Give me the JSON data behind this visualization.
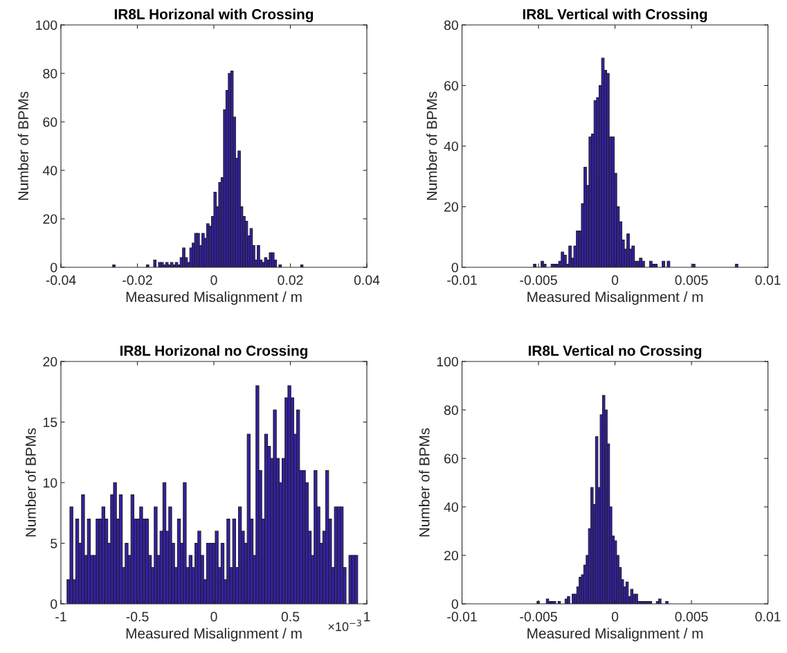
{
  "chart_data": [
    {
      "type": "histogram",
      "title": "IR8L Horizonal with Crossing",
      "xlabel": "Measured Misalignment / m",
      "ylabel": "Number of BPMs",
      "color": "#3521a6",
      "bins": [
        -0.0315,
        -0.03087,
        -0.03024,
        -0.02961,
        -0.02898,
        -0.02835,
        -0.02772,
        -0.02709,
        -0.02646,
        -0.02583,
        -0.0252,
        -0.02457,
        -0.02394,
        -0.02331,
        -0.02268,
        -0.02205,
        -0.02142,
        -0.02079,
        -0.02016,
        -0.01953,
        -0.0189,
        -0.01827,
        -0.01764,
        -0.01701,
        -0.01638,
        -0.01575,
        -0.01512,
        -0.01449,
        -0.01386,
        -0.01323,
        -0.0126,
        -0.01197,
        -0.01134,
        -0.01071,
        -0.01008,
        -0.00945,
        -0.00882,
        -0.00819,
        -0.00756,
        -0.00693,
        -0.0063,
        -0.00567,
        -0.00504,
        -0.00441,
        -0.00378,
        -0.00315,
        -0.00252,
        -0.00189,
        -0.00126,
        -0.00063,
        0,
        0.00063,
        0.00126,
        0.00189,
        0.00252,
        0.00315,
        0.00378,
        0.00441,
        0.00504,
        0.00567,
        0.0063,
        0.00693,
        0.00756,
        0.00819,
        0.00882,
        0.00945,
        0.01008,
        0.01071,
        0.01134,
        0.01197,
        0.0126,
        0.01323,
        0.01386,
        0.01449,
        0.01512,
        0.01575,
        0.01638,
        0.01701,
        0.01764,
        0.01827,
        0.0189,
        0.01953,
        0.02016,
        0.02079,
        0.02142,
        0.02205,
        0.02268,
        0.02331,
        0.02394,
        0.02457,
        0.0252,
        0.02583,
        0.02646,
        0.02709,
        0.02772,
        0.02835,
        0.02898,
        0.02961,
        0.03024,
        0.03087,
        0.0315
      ],
      "values": [
        0,
        0,
        0,
        0,
        0,
        0,
        0,
        0,
        1,
        0,
        0,
        0,
        0,
        0,
        0,
        0,
        0,
        0,
        0,
        0,
        0,
        0,
        1,
        0,
        0,
        3,
        0,
        2,
        2,
        1,
        2,
        1,
        2,
        1,
        2,
        1,
        4,
        8,
        4,
        2,
        8,
        10,
        14,
        14,
        9,
        14,
        12,
        18,
        17,
        21,
        31,
        25,
        35,
        37,
        65,
        73,
        80,
        81,
        62,
        45,
        48,
        25,
        21,
        19,
        13,
        16,
        9,
        3,
        9,
        3,
        2,
        4,
        3,
        6,
        6,
        3,
        0,
        1,
        0,
        0,
        0,
        0,
        0,
        0,
        0,
        0,
        1,
        0,
        0,
        0,
        0,
        0,
        0,
        0,
        0,
        0,
        0,
        0,
        0,
        0
      ],
      "xlim": [
        -0.04,
        0.04
      ],
      "xticks": [
        -0.04,
        -0.02,
        0,
        0.02,
        0.04
      ],
      "ylim": [
        0,
        100
      ],
      "yticks": [
        0,
        20,
        40,
        60,
        80,
        100
      ]
    },
    {
      "type": "histogram",
      "title": "IR8L Vertical with Crossing",
      "xlabel": "Measured Misalignment / m",
      "ylabel": "Number of BPMs",
      "color": "#3521a6",
      "bins": [
        -0.0083,
        -0.008135,
        -0.00797,
        -0.007805,
        -0.00764,
        -0.007475,
        -0.00731,
        -0.007145,
        -0.00698,
        -0.006815,
        -0.00665,
        -0.006485,
        -0.00632,
        -0.006155,
        -0.00599,
        -0.005825,
        -0.00566,
        -0.005495,
        -0.00533,
        -0.005165,
        -0.005,
        -0.004835,
        -0.00467,
        -0.004505,
        -0.00434,
        -0.004175,
        -0.00401,
        -0.003845,
        -0.00368,
        -0.003515,
        -0.00335,
        -0.003185,
        -0.00302,
        -0.002855,
        -0.00269,
        -0.002525,
        -0.00236,
        -0.002195,
        -0.00203,
        -0.001865,
        -0.0017,
        -0.001535,
        -0.00137,
        -0.001205,
        -0.00104,
        -0.000875,
        -0.00071,
        -0.000545,
        -0.00038,
        -0.000215,
        -5e-05,
        0.000115,
        0.00028,
        0.000445,
        0.00061,
        0.000775,
        0.00094,
        0.001105,
        0.00127,
        0.001435,
        0.0016,
        0.001765,
        0.00193,
        0.002095,
        0.00226,
        0.002425,
        0.00259,
        0.002755,
        0.00292,
        0.003085,
        0.00325,
        0.003415,
        0.00358,
        0.003745,
        0.00391,
        0.004075,
        0.00424,
        0.004405,
        0.00457,
        0.004735,
        0.0049,
        0.005065,
        0.00523,
        0.005395,
        0.00556,
        0.005725,
        0.00589,
        0.006055,
        0.00622,
        0.006385,
        0.00655,
        0.006715,
        0.00688,
        0.007045,
        0.00721,
        0.007375,
        0.00754,
        0.007705,
        0.00787,
        0.008035,
        0.0082
      ],
      "values": [
        0,
        0,
        0,
        0,
        0,
        0,
        0,
        0,
        0,
        0,
        0,
        0,
        0,
        0,
        0,
        0,
        0,
        0,
        1,
        0,
        0,
        2,
        1,
        0,
        0,
        1,
        1,
        1,
        2,
        5,
        4,
        1,
        7,
        3,
        7,
        12,
        12,
        21,
        33,
        27,
        43,
        44,
        55,
        56,
        60,
        69,
        65,
        64,
        43,
        43,
        31,
        20,
        15,
        9,
        6,
        11,
        6,
        7,
        2,
        2,
        3,
        2,
        0,
        0,
        2,
        1,
        1,
        0,
        0,
        2,
        0,
        2,
        0,
        0,
        0,
        0,
        0,
        0,
        0,
        0,
        0,
        1,
        0,
        0,
        0,
        0,
        0,
        0,
        0,
        0,
        0,
        0,
        0,
        0,
        0,
        0,
        0,
        0,
        1,
        0
      ],
      "xlim": [
        -0.01,
        0.01
      ],
      "xticks": [
        -0.01,
        -0.005,
        0,
        0.005,
        0.01
      ],
      "ylim": [
        0,
        80
      ],
      "yticks": [
        0,
        20,
        40,
        60,
        80
      ]
    },
    {
      "type": "histogram",
      "title": "IR8L Horizonal no Crossing",
      "xlabel": "Measured Misalignment / m",
      "ylabel": "Number of BPMs",
      "color": "#3521a6",
      "bins": [
        -0.96,
        -0.941,
        -0.922,
        -0.903,
        -0.884,
        -0.865,
        -0.846,
        -0.827,
        -0.808,
        -0.789,
        -0.77,
        -0.751,
        -0.732,
        -0.713,
        -0.694,
        -0.675,
        -0.656,
        -0.637,
        -0.618,
        -0.599,
        -0.58,
        -0.561,
        -0.542,
        -0.523,
        -0.504,
        -0.485,
        -0.466,
        -0.447,
        -0.428,
        -0.409,
        -0.39,
        -0.371,
        -0.352,
        -0.333,
        -0.314,
        -0.295,
        -0.276,
        -0.257,
        -0.238,
        -0.219,
        -0.2,
        -0.181,
        -0.162,
        -0.143,
        -0.124,
        -0.105,
        -0.086,
        -0.067,
        -0.048,
        -0.029,
        -0.01,
        0.009,
        0.028,
        0.047,
        0.066,
        0.085,
        0.104,
        0.123,
        0.142,
        0.161,
        0.18,
        0.199,
        0.218,
        0.237,
        0.256,
        0.275,
        0.294,
        0.313,
        0.332,
        0.351,
        0.37,
        0.389,
        0.408,
        0.427,
        0.446,
        0.465,
        0.484,
        0.503,
        0.522,
        0.541,
        0.56,
        0.579,
        0.598,
        0.617,
        0.636,
        0.655,
        0.674,
        0.693,
        0.712,
        0.731,
        0.75,
        0.769,
        0.788,
        0.807,
        0.826,
        0.845,
        0.864,
        0.883,
        0.902,
        0.921,
        0.94
      ],
      "values": [
        2,
        8,
        2,
        7,
        5,
        9,
        4,
        7,
        4,
        4,
        7,
        7,
        8,
        7,
        5,
        9,
        10,
        7,
        9,
        3,
        5,
        4,
        9,
        7,
        7,
        8,
        7,
        7,
        4,
        3,
        8,
        4,
        6,
        10,
        6,
        8,
        5,
        3,
        7,
        5,
        10,
        3,
        4,
        3,
        5,
        6,
        4,
        2,
        5,
        5,
        5,
        6,
        3,
        5,
        2,
        7,
        3,
        7,
        3,
        8,
        6,
        5,
        14,
        7,
        4,
        18,
        11,
        7,
        14,
        13,
        12,
        16,
        12,
        10,
        12,
        17,
        18,
        17,
        14,
        16,
        11,
        11,
        10,
        6,
        4,
        11,
        8,
        5,
        6,
        11,
        7,
        3,
        8,
        8,
        8,
        3,
        0,
        4,
        4,
        4
      ],
      "xlim": [
        -1,
        1
      ],
      "xticks": [
        -1,
        -0.5,
        0,
        0.5,
        1
      ],
      "ylim": [
        0,
        20
      ],
      "yticks": [
        0,
        5,
        10,
        15,
        20
      ],
      "annotations": [
        "×10$^{−3}$"
      ]
    },
    {
      "type": "histogram",
      "title": "IR8L Vertical no Crossing",
      "xlabel": "Measured Misalignment / m",
      "ylabel": "Number of BPMs",
      "color": "#3521a6",
      "bins": [
        -0.0077,
        -0.007547,
        -0.007394,
        -0.007241,
        -0.007088,
        -0.006935,
        -0.006782,
        -0.006629,
        -0.006476,
        -0.006323,
        -0.00617,
        -0.006017,
        -0.005864,
        -0.005711,
        -0.005558,
        -0.005405,
        -0.005252,
        -0.005099,
        -0.004946,
        -0.004793,
        -0.00464,
        -0.004487,
        -0.004334,
        -0.004181,
        -0.004028,
        -0.003875,
        -0.003722,
        -0.003569,
        -0.003416,
        -0.003263,
        -0.00311,
        -0.002957,
        -0.002804,
        -0.002651,
        -0.002498,
        -0.002345,
        -0.002192,
        -0.002039,
        -0.001886,
        -0.001733,
        -0.00158,
        -0.001427,
        -0.001274,
        -0.001121,
        -0.000968,
        -0.000815,
        -0.000662,
        -0.000509,
        -0.000356,
        -0.000203,
        -5e-05,
        0.000103,
        0.000256,
        0.000409,
        0.000562,
        0.000715,
        0.000868,
        0.001021,
        0.001174,
        0.001327,
        0.00148,
        0.001633,
        0.001786,
        0.001939,
        0.002092,
        0.002245,
        0.002398,
        0.002551,
        0.002704,
        0.002857,
        0.00301,
        0.003163,
        0.003316,
        0.003469,
        0.003622,
        0.003775,
        0.003928,
        0.004081,
        0.004234,
        0.004387,
        0.00454,
        0.004693,
        0.004846,
        0.004999,
        0.005152,
        0.005305,
        0.005458,
        0.005611,
        0.005764,
        0.005917,
        0.00607,
        0.006223,
        0.006376,
        0.006529,
        0.006682,
        0.006835,
        0.006988,
        0.007141,
        0.007294,
        0.007447,
        0.0076
      ],
      "values": [
        0,
        0,
        0,
        0,
        0,
        0,
        0,
        0,
        0,
        0,
        0,
        0,
        0,
        0,
        0,
        0,
        0,
        1,
        0,
        0,
        0,
        2,
        1,
        1,
        1,
        0,
        1,
        0,
        0,
        2,
        3,
        0,
        4,
        4,
        7,
        11,
        12,
        16,
        20,
        31,
        48,
        41,
        69,
        48,
        78,
        86,
        80,
        66,
        40,
        28,
        26,
        20,
        15,
        10,
        7,
        9,
        3,
        6,
        4,
        4,
        1,
        1,
        1,
        1,
        1,
        1,
        0,
        0,
        1,
        2,
        0,
        0,
        1,
        0,
        0,
        0,
        0,
        0,
        0,
        0,
        0,
        0,
        0,
        0,
        0,
        0,
        0,
        0,
        0,
        0,
        0,
        0,
        0,
        0,
        0,
        0,
        0,
        0,
        0,
        0
      ],
      "xlim": [
        -0.01,
        0.01
      ],
      "xticks": [
        -0.01,
        -0.005,
        0,
        0.005,
        0.01
      ],
      "ylim": [
        0,
        100
      ],
      "yticks": [
        0,
        20,
        40,
        60,
        80,
        100
      ]
    }
  ]
}
